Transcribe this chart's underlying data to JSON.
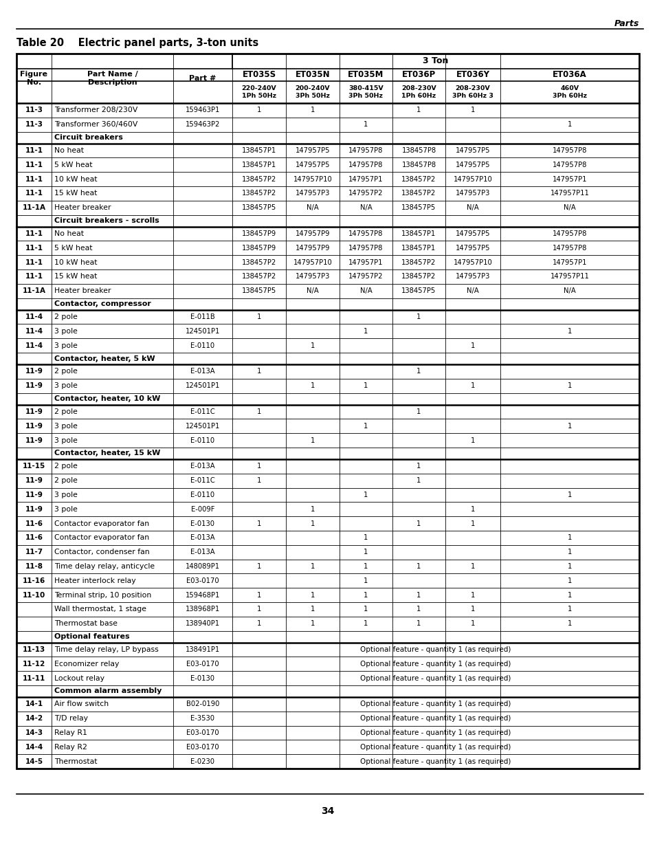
{
  "title": "Table 20    Electric panel parts, 3-ton units",
  "page_header": "Parts",
  "page_number": "34",
  "opt_text": "Optional feature - quantity 1 (as required)",
  "col_names": [
    "ET035S",
    "ET035N",
    "ET035M",
    "ET036P",
    "ET036Y",
    "ET036A"
  ],
  "col_sub": [
    "220-240V\n1Ph 50Hz",
    "200-240V\n3Ph 50Hz",
    "380-415V\n3Ph 50Hz",
    "208-230V\n1Ph 60Hz",
    "208-230V\n3Ph 60Hz 3",
    "460V\n3Ph 60Hz"
  ],
  "rows": [
    {
      "fig": "11-3",
      "name": "Transformer 208/230V",
      "part": "159463P1",
      "vals": [
        "1",
        "1",
        "",
        "1",
        "1",
        ""
      ],
      "section": false
    },
    {
      "fig": "11-3",
      "name": "Transformer 360/460V",
      "part": "159463P2",
      "vals": [
        "",
        "",
        "1",
        "",
        "",
        "1"
      ],
      "section": false
    },
    {
      "fig": "",
      "name": "Circuit breakers",
      "part": "",
      "vals": [],
      "section": true
    },
    {
      "fig": "11-1",
      "name": "No heat",
      "part": "",
      "vals": [
        "138457P1",
        "147957P5",
        "147957P8",
        "138457P8",
        "147957P5",
        "147957P8"
      ],
      "section": false
    },
    {
      "fig": "11-1",
      "name": "5 kW heat",
      "part": "",
      "vals": [
        "138457P1",
        "147957P5",
        "147957P8",
        "138457P8",
        "147957P5",
        "147957P8"
      ],
      "section": false
    },
    {
      "fig": "11-1",
      "name": "10 kW heat",
      "part": "",
      "vals": [
        "138457P2",
        "147957P10",
        "147957P1",
        "138457P2",
        "147957P10",
        "147957P1"
      ],
      "section": false
    },
    {
      "fig": "11-1",
      "name": "15 kW heat",
      "part": "",
      "vals": [
        "138457P2",
        "147957P3",
        "147957P2",
        "138457P2",
        "147957P3",
        "147957P11"
      ],
      "section": false
    },
    {
      "fig": "11-1A",
      "name": "Heater breaker",
      "part": "",
      "vals": [
        "138457P5",
        "N/A",
        "N/A",
        "138457P5",
        "N/A",
        "N/A"
      ],
      "section": false
    },
    {
      "fig": "",
      "name": "Circuit breakers - scrolls",
      "part": "",
      "vals": [],
      "section": true
    },
    {
      "fig": "11-1",
      "name": "No heat",
      "part": "",
      "vals": [
        "138457P9",
        "147957P9",
        "147957P8",
        "138457P1",
        "147957P5",
        "147957P8"
      ],
      "section": false
    },
    {
      "fig": "11-1",
      "name": "5 kW heat",
      "part": "",
      "vals": [
        "138457P9",
        "147957P9",
        "147957P8",
        "138457P1",
        "147957P5",
        "147957P8"
      ],
      "section": false
    },
    {
      "fig": "11-1",
      "name": "10 kW heat",
      "part": "",
      "vals": [
        "138457P2",
        "147957P10",
        "147957P1",
        "138457P2",
        "147957P10",
        "147957P1"
      ],
      "section": false
    },
    {
      "fig": "11-1",
      "name": "15 kW heat",
      "part": "",
      "vals": [
        "138457P2",
        "147957P3",
        "147957P2",
        "138457P2",
        "147957P3",
        "147957P11"
      ],
      "section": false
    },
    {
      "fig": "11-1A",
      "name": "Heater breaker",
      "part": "",
      "vals": [
        "138457P5",
        "N/A",
        "N/A",
        "138457P5",
        "N/A",
        "N/A"
      ],
      "section": false
    },
    {
      "fig": "",
      "name": "Contactor, compressor",
      "part": "",
      "vals": [],
      "section": true
    },
    {
      "fig": "11-4",
      "name": "2 pole",
      "part": "E-011B",
      "vals": [
        "1",
        "",
        "",
        "1",
        "",
        ""
      ],
      "section": false
    },
    {
      "fig": "11-4",
      "name": "3 pole",
      "part": "124501P1",
      "vals": [
        "",
        "",
        "1",
        "",
        "",
        "1"
      ],
      "section": false
    },
    {
      "fig": "11-4",
      "name": "3 pole",
      "part": "E-0110",
      "vals": [
        "",
        "1",
        "",
        "",
        "1",
        ""
      ],
      "section": false
    },
    {
      "fig": "",
      "name": "Contactor, heater, 5 kW",
      "part": "",
      "vals": [],
      "section": true
    },
    {
      "fig": "11-9",
      "name": "2 pole",
      "part": "E-013A",
      "vals": [
        "1",
        "",
        "",
        "1",
        "",
        ""
      ],
      "section": false
    },
    {
      "fig": "11-9",
      "name": "3 pole",
      "part": "124501P1",
      "vals": [
        "",
        "1",
        "1",
        "",
        "1",
        "1"
      ],
      "section": false
    },
    {
      "fig": "",
      "name": "Contactor, heater, 10 kW",
      "part": "",
      "vals": [],
      "section": true
    },
    {
      "fig": "11-9",
      "name": "2 pole",
      "part": "E-011C",
      "vals": [
        "1",
        "",
        "",
        "1",
        "",
        ""
      ],
      "section": false
    },
    {
      "fig": "11-9",
      "name": "3 pole",
      "part": "124501P1",
      "vals": [
        "",
        "",
        "1",
        "",
        "",
        "1"
      ],
      "section": false
    },
    {
      "fig": "11-9",
      "name": "3 pole",
      "part": "E-0110",
      "vals": [
        "",
        "1",
        "",
        "",
        "1",
        ""
      ],
      "section": false
    },
    {
      "fig": "",
      "name": "Contactor, heater, 15 kW",
      "part": "",
      "vals": [],
      "section": true
    },
    {
      "fig": "11-15",
      "name": "2 pole",
      "part": "E-013A",
      "vals": [
        "1",
        "",
        "",
        "1",
        "",
        ""
      ],
      "section": false
    },
    {
      "fig": "11-9",
      "name": "2 pole",
      "part": "E-011C",
      "vals": [
        "1",
        "",
        "",
        "1",
        "",
        ""
      ],
      "section": false
    },
    {
      "fig": "11-9",
      "name": "3 pole",
      "part": "E-0110",
      "vals": [
        "",
        "",
        "1",
        "",
        "",
        "1"
      ],
      "section": false
    },
    {
      "fig": "11-9",
      "name": "3 pole",
      "part": "E-009F",
      "vals": [
        "",
        "1",
        "",
        "",
        "1",
        ""
      ],
      "section": false
    },
    {
      "fig": "11-6",
      "name": "Contactor evaporator fan",
      "part": "E-0130",
      "vals": [
        "1",
        "1",
        "",
        "1",
        "1",
        ""
      ],
      "section": false
    },
    {
      "fig": "11-6",
      "name": "Contactor evaporator fan",
      "part": "E-013A",
      "vals": [
        "",
        "",
        "1",
        "",
        "",
        "1"
      ],
      "section": false
    },
    {
      "fig": "11-7",
      "name": "Contactor, condenser fan",
      "part": "E-013A",
      "vals": [
        "",
        "",
        "1",
        "",
        "",
        "1"
      ],
      "section": false
    },
    {
      "fig": "11-8",
      "name": "Time delay relay, anticycle",
      "part": "148089P1",
      "vals": [
        "1",
        "1",
        "1",
        "1",
        "1",
        "1"
      ],
      "section": false
    },
    {
      "fig": "11-16",
      "name": "Heater interlock relay",
      "part": "E03-0170",
      "vals": [
        "",
        "",
        "1",
        "",
        "",
        "1"
      ],
      "section": false
    },
    {
      "fig": "11-10",
      "name": "Terminal strip, 10 position",
      "part": "159468P1",
      "vals": [
        "1",
        "1",
        "1",
        "1",
        "1",
        "1"
      ],
      "section": false
    },
    {
      "fig": "",
      "name": "Wall thermostat, 1 stage",
      "part": "138968P1",
      "vals": [
        "1",
        "1",
        "1",
        "1",
        "1",
        "1"
      ],
      "section": false
    },
    {
      "fig": "",
      "name": "Thermostat base",
      "part": "138940P1",
      "vals": [
        "1",
        "1",
        "1",
        "1",
        "1",
        "1"
      ],
      "section": false
    },
    {
      "fig": "",
      "name": "Optional features",
      "part": "",
      "vals": [],
      "section": true
    },
    {
      "fig": "11-13",
      "name": "Time delay relay, LP bypass",
      "part": "138491P1",
      "vals": [
        "opt"
      ],
      "section": false
    },
    {
      "fig": "11-12",
      "name": "Economizer relay",
      "part": "E03-0170",
      "vals": [
        "opt"
      ],
      "section": false
    },
    {
      "fig": "11-11",
      "name": "Lockout relay",
      "part": "E-0130",
      "vals": [
        "opt"
      ],
      "section": false
    },
    {
      "fig": "",
      "name": "Common alarm assembly",
      "part": "",
      "vals": [],
      "section": true
    },
    {
      "fig": "14-1",
      "name": "Air flow switch",
      "part": "B02-0190",
      "vals": [
        "opt"
      ],
      "section": false
    },
    {
      "fig": "14-2",
      "name": "T/D relay",
      "part": "E-3530",
      "vals": [
        "opt"
      ],
      "section": false
    },
    {
      "fig": "14-3",
      "name": "Relay R1",
      "part": "E03-0170",
      "vals": [
        "opt"
      ],
      "section": false
    },
    {
      "fig": "14-4",
      "name": "Relay R2",
      "part": "E03-0170",
      "vals": [
        "opt"
      ],
      "section": false
    },
    {
      "fig": "14-5",
      "name": "Thermostat",
      "part": "E-0230",
      "vals": [
        "opt"
      ],
      "section": false
    }
  ]
}
